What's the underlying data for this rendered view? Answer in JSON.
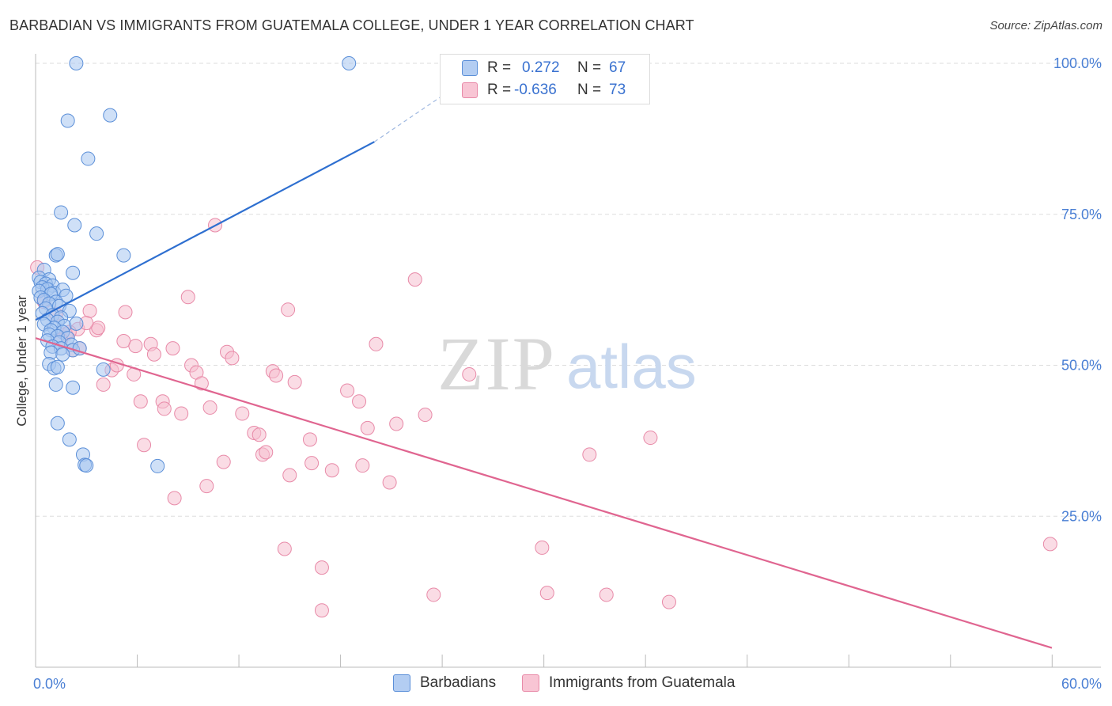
{
  "title": "BARBADIAN VS IMMIGRANTS FROM GUATEMALA COLLEGE, UNDER 1 YEAR CORRELATION CHART",
  "source": "Source: ZipAtlas.com",
  "watermark": {
    "zip": "ZIP",
    "atlas": "atlas"
  },
  "colors": {
    "blue_fill": "#a8c6f0",
    "blue_stroke": "#5b8fd8",
    "blue_line": "#2e6fd0",
    "pink_fill": "#f6bfd0",
    "pink_stroke": "#e88aa8",
    "pink_line": "#e06590",
    "tick_text": "#4a7fd4"
  },
  "legend": {
    "rows": [
      {
        "r_label": "R =",
        "r_value": "0.272",
        "n_label": "N =",
        "n_value": "67"
      },
      {
        "r_label": "R =",
        "r_value": "-0.636",
        "n_label": "N =",
        "n_value": "73"
      }
    ]
  },
  "bottom_legend": {
    "series1": "Barbadians",
    "series2": "Immigrants from Guatemala"
  },
  "chart_data": {
    "type": "scatter",
    "title": "BARBADIAN VS IMMIGRANTS FROM GUATEMALA COLLEGE, UNDER 1 YEAR CORRELATION CHART",
    "xlabel": "",
    "ylabel": "College, Under 1 year",
    "xlim": [
      0,
      60
    ],
    "ylim": [
      0,
      100
    ],
    "x_tick_labels": [
      "0.0%",
      "60.0%"
    ],
    "y_ticks": [
      25,
      50,
      75,
      100
    ],
    "y_tick_labels": [
      "25.0%",
      "50.0%",
      "75.0%",
      "100.0%"
    ],
    "grid": true,
    "legend_position": "top-center",
    "series": [
      {
        "name": "Barbadians",
        "r": 0.272,
        "n": 67,
        "trend": {
          "x0": 0,
          "y0": 57.5,
          "x1": 20,
          "y1": 87,
          "dashed_to_x": 25,
          "dashed_to_y": 96.5
        },
        "points": [
          [
            2.4,
            100
          ],
          [
            18.5,
            100
          ],
          [
            1.9,
            90.5
          ],
          [
            4.4,
            91.4
          ],
          [
            3.1,
            84.2
          ],
          [
            1.5,
            75.3
          ],
          [
            2.3,
            73.2
          ],
          [
            3.6,
            71.8
          ],
          [
            1.2,
            68.2
          ],
          [
            1.3,
            68.4
          ],
          [
            5.2,
            68.2
          ],
          [
            2.2,
            65.3
          ],
          [
            0.5,
            65.8
          ],
          [
            0.2,
            64.5
          ],
          [
            0.8,
            64.2
          ],
          [
            0.3,
            63.8
          ],
          [
            0.6,
            63.5
          ],
          [
            1.0,
            63.2
          ],
          [
            0.4,
            62.9
          ],
          [
            0.7,
            62.6
          ],
          [
            0.2,
            62.3
          ],
          [
            1.1,
            62.0
          ],
          [
            1.6,
            62.5
          ],
          [
            0.9,
            61.8
          ],
          [
            1.8,
            61.5
          ],
          [
            0.3,
            61.2
          ],
          [
            0.5,
            60.8
          ],
          [
            1.2,
            60.5
          ],
          [
            0.8,
            60.2
          ],
          [
            1.4,
            59.8
          ],
          [
            0.6,
            59.4
          ],
          [
            2.0,
            59.0
          ],
          [
            0.4,
            58.6
          ],
          [
            1.0,
            58.3
          ],
          [
            1.5,
            57.9
          ],
          [
            0.7,
            57.5
          ],
          [
            1.3,
            57.2
          ],
          [
            0.5,
            56.8
          ],
          [
            1.7,
            56.5
          ],
          [
            2.4,
            56.9
          ],
          [
            1.1,
            56.2
          ],
          [
            0.9,
            55.8
          ],
          [
            1.6,
            55.5
          ],
          [
            0.8,
            55.1
          ],
          [
            1.3,
            54.8
          ],
          [
            1.9,
            54.5
          ],
          [
            0.7,
            54.1
          ],
          [
            1.4,
            53.8
          ],
          [
            2.1,
            53.4
          ],
          [
            1.0,
            53.1
          ],
          [
            1.5,
            52.8
          ],
          [
            2.2,
            52.5
          ],
          [
            0.9,
            52.1
          ],
          [
            1.6,
            51.8
          ],
          [
            0.8,
            50.2
          ],
          [
            1.1,
            49.5
          ],
          [
            1.3,
            49.7
          ],
          [
            4.0,
            49.3
          ],
          [
            1.2,
            46.8
          ],
          [
            2.2,
            46.3
          ],
          [
            1.3,
            40.4
          ],
          [
            2.0,
            37.7
          ],
          [
            2.8,
            35.2
          ],
          [
            2.9,
            33.5
          ],
          [
            3.0,
            33.4
          ],
          [
            7.2,
            33.3
          ],
          [
            2.6,
            52.8
          ]
        ]
      },
      {
        "name": "Immigrants from Guatemala",
        "r": -0.636,
        "n": 73,
        "trend": {
          "x0": 0,
          "y0": 54.5,
          "x1": 60,
          "y1": 3.2
        },
        "points": [
          [
            0.1,
            66.2
          ],
          [
            0.5,
            60.5
          ],
          [
            1.2,
            58.5
          ],
          [
            1.8,
            55.2
          ],
          [
            2.5,
            56.0
          ],
          [
            2.6,
            52.8
          ],
          [
            3.2,
            59.0
          ],
          [
            3.6,
            55.8
          ],
          [
            3.7,
            56.2
          ],
          [
            4.0,
            46.8
          ],
          [
            4.5,
            49.2
          ],
          [
            4.8,
            50.0
          ],
          [
            5.2,
            54.0
          ],
          [
            5.3,
            58.8
          ],
          [
            5.8,
            48.5
          ],
          [
            5.9,
            53.2
          ],
          [
            6.2,
            44.0
          ],
          [
            6.4,
            36.8
          ],
          [
            6.8,
            53.5
          ],
          [
            7.0,
            51.8
          ],
          [
            7.5,
            44.0
          ],
          [
            7.6,
            42.8
          ],
          [
            8.1,
            52.8
          ],
          [
            8.2,
            28.0
          ],
          [
            8.6,
            42.0
          ],
          [
            9.0,
            61.3
          ],
          [
            9.2,
            50.0
          ],
          [
            9.5,
            48.8
          ],
          [
            9.8,
            47.0
          ],
          [
            10.1,
            30.0
          ],
          [
            10.3,
            43.0
          ],
          [
            10.6,
            73.2
          ],
          [
            11.1,
            34.0
          ],
          [
            11.3,
            52.2
          ],
          [
            11.6,
            51.2
          ],
          [
            12.2,
            42.0
          ],
          [
            12.9,
            38.8
          ],
          [
            13.2,
            38.5
          ],
          [
            13.4,
            35.2
          ],
          [
            13.6,
            35.6
          ],
          [
            14.0,
            49.0
          ],
          [
            14.2,
            48.3
          ],
          [
            14.9,
            59.2
          ],
          [
            15.0,
            31.8
          ],
          [
            15.3,
            47.2
          ],
          [
            14.7,
            19.6
          ],
          [
            16.2,
            37.7
          ],
          [
            16.3,
            33.8
          ],
          [
            16.9,
            9.4
          ],
          [
            16.9,
            16.5
          ],
          [
            17.5,
            32.6
          ],
          [
            18.4,
            45.8
          ],
          [
            19.1,
            44.0
          ],
          [
            19.3,
            33.4
          ],
          [
            19.6,
            39.6
          ],
          [
            20.1,
            53.5
          ],
          [
            20.9,
            30.6
          ],
          [
            21.3,
            40.3
          ],
          [
            22.4,
            64.2
          ],
          [
            23.0,
            41.8
          ],
          [
            23.5,
            12.0
          ],
          [
            25.6,
            48.5
          ],
          [
            29.9,
            19.8
          ],
          [
            30.2,
            12.3
          ],
          [
            32.7,
            35.2
          ],
          [
            33.7,
            12.0
          ],
          [
            36.3,
            38.0
          ],
          [
            37.4,
            10.8
          ],
          [
            59.9,
            20.4
          ],
          [
            2.0,
            55.5
          ],
          [
            2.2,
            52.5
          ],
          [
            1.5,
            54.2
          ],
          [
            3.0,
            57.0
          ]
        ]
      }
    ]
  }
}
